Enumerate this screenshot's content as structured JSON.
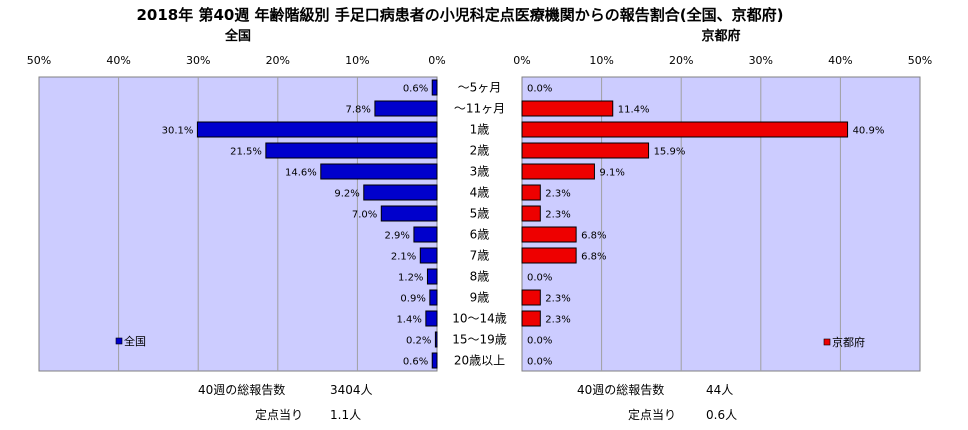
{
  "title": "2018年 第40週 年齢階級別 手足口病患者の小児科定点医療機関からの報告割合(全国、京都府)",
  "chart_data": [
    {
      "type": "bar",
      "orientation": "horizontal",
      "direction": "right-to-left",
      "subtitle": "全国",
      "xlim": [
        0,
        50
      ],
      "ticks": [
        "50%",
        "40%",
        "30%",
        "20%",
        "10%",
        "0%"
      ],
      "categories": [
        "～5ヶ月",
        "～11ヶ月",
        "1歳",
        "2歳",
        "3歳",
        "4歳",
        "5歳",
        "6歳",
        "7歳",
        "8歳",
        "9歳",
        "10～14歳",
        "15～19歳",
        "20歳以上"
      ],
      "series": [
        {
          "name": "全国",
          "color": "#0000cc",
          "values": [
            0.6,
            7.8,
            30.1,
            21.5,
            14.6,
            9.2,
            7.0,
            2.9,
            2.1,
            1.2,
            0.9,
            1.4,
            0.2,
            0.6
          ],
          "labels": [
            "0.6%",
            "7.8%",
            "30.1%",
            "21.5%",
            "14.6%",
            "9.2%",
            "7.0%",
            "2.9%",
            "2.1%",
            "1.2%",
            "0.9%",
            "1.4%",
            "0.2%",
            "0.6%"
          ]
        }
      ],
      "legend": "bottom-left",
      "grid": true,
      "plot_background": "#ccccff"
    },
    {
      "type": "bar",
      "orientation": "horizontal",
      "direction": "left-to-right",
      "subtitle": "京都府",
      "xlim": [
        0,
        50
      ],
      "ticks": [
        "0%",
        "10%",
        "20%",
        "30%",
        "40%",
        "50%"
      ],
      "series": [
        {
          "name": "京都府",
          "color": "#ee0000",
          "values": [
            0.0,
            11.4,
            40.9,
            15.9,
            9.1,
            2.3,
            2.3,
            6.8,
            6.8,
            0.0,
            2.3,
            2.3,
            0.0,
            0.0
          ],
          "labels": [
            "0.0%",
            "11.4%",
            "40.9%",
            "15.9%",
            "9.1%",
            "2.3%",
            "2.3%",
            "6.8%",
            "6.8%",
            "0.0%",
            "2.3%",
            "2.3%",
            "0.0%",
            "0.0%"
          ]
        }
      ],
      "legend": "bottom-right",
      "grid": true,
      "plot_background": "#ccccff"
    }
  ],
  "footer": {
    "left": {
      "total_label": "40週の総報告数",
      "total_value": "3404人",
      "rate_label": "定点当り",
      "rate_value": "1.1人"
    },
    "right": {
      "total_label": "40週の総報告数",
      "total_value": "44人",
      "rate_label": "定点当り",
      "rate_value": "0.6人"
    }
  }
}
